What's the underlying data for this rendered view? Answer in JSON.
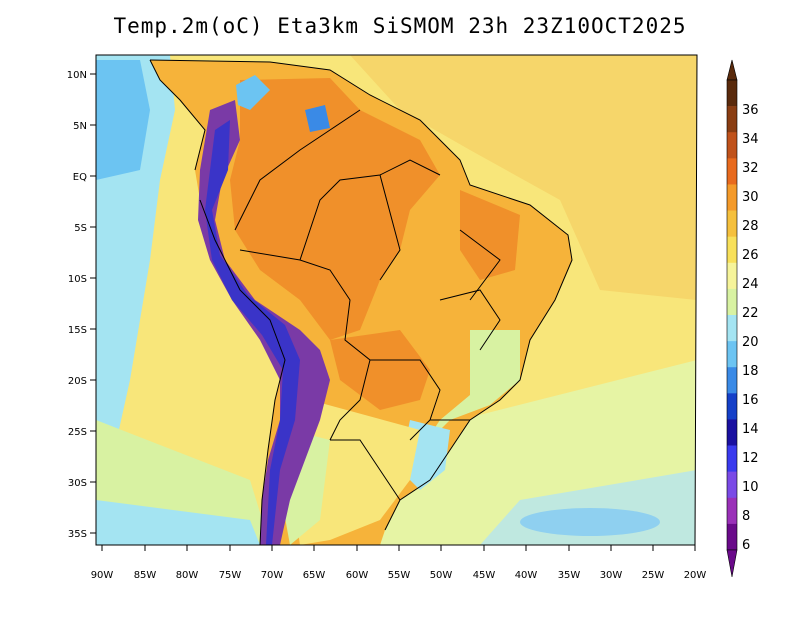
{
  "title": "Temp.2m(oC) Eta3km SiSMOM 23h 23Z10OCT2025",
  "lat_ticks": [
    "10N",
    "5N",
    "EQ",
    "5S",
    "10S",
    "15S",
    "20S",
    "25S",
    "30S",
    "35S"
  ],
  "lon_ticks": [
    "90W",
    "85W",
    "80W",
    "75W",
    "70W",
    "65W",
    "60W",
    "55W",
    "50W",
    "45W",
    "40W",
    "35W",
    "30W",
    "25W",
    "20W"
  ],
  "colorbar": {
    "labels": [
      "36",
      "34",
      "32",
      "30",
      "28",
      "26",
      "24",
      "22",
      "20",
      "18",
      "16",
      "14",
      "12",
      "10",
      "8",
      "6"
    ],
    "colors": [
      "#5a2a0c",
      "#8a3d12",
      "#c0521b",
      "#e86a1e",
      "#f49a2a",
      "#f5c03d",
      "#f8e05a",
      "#f6f49a",
      "#d8f2a2",
      "#a4e4f2",
      "#6cc4f2",
      "#3a8ae6",
      "#1540c8",
      "#1a10a0",
      "#3a3aee",
      "#7a4ae6",
      "#9a30b8",
      "#6a0a8a"
    ],
    "top_arrow_color": "#5a2a0c",
    "bottom_arrow_color": "#6a0a8a"
  },
  "colors": {
    "ocean_warm": "#f6d66a",
    "ocean_mild": "#f8e67a",
    "ocean_cool": "#d6f29c",
    "ocean_cold": "#88d0f0",
    "land_hot": "#f0902a",
    "land_warm": "#f6b33a",
    "andes": "#7a3aa6",
    "andes_cold": "#3a34c8"
  }
}
